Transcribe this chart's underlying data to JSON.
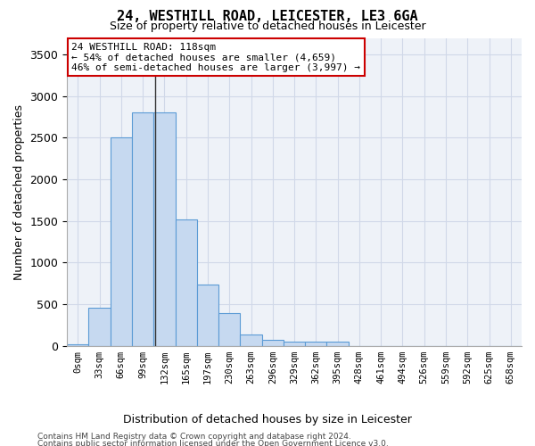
{
  "title1": "24, WESTHILL ROAD, LEICESTER, LE3 6GA",
  "title2": "Size of property relative to detached houses in Leicester",
  "xlabel": "Distribution of detached houses by size in Leicester",
  "ylabel": "Number of detached properties",
  "bar_values": [
    20,
    460,
    2500,
    2810,
    2810,
    1520,
    740,
    390,
    140,
    70,
    50,
    50,
    50,
    0,
    0,
    0,
    0,
    0,
    0,
    0,
    0
  ],
  "bar_labels": [
    "0sqm",
    "33sqm",
    "66sqm",
    "99sqm",
    "132sqm",
    "165sqm",
    "197sqm",
    "230sqm",
    "263sqm",
    "296sqm",
    "329sqm",
    "362sqm",
    "395sqm",
    "428sqm",
    "461sqm",
    "494sqm",
    "526sqm",
    "559sqm",
    "592sqm",
    "625sqm",
    "658sqm"
  ],
  "bar_color": "#c6d9f0",
  "bar_edge_color": "#5b9bd5",
  "grid_color": "#d0d8e8",
  "bg_color": "#eef2f8",
  "annotation_text": "24 WESTHILL ROAD: 118sqm\n← 54% of detached houses are smaller (4,659)\n46% of semi-detached houses are larger (3,997) →",
  "annotation_box_color": "#ffffff",
  "annotation_border_color": "#cc0000",
  "property_line_x": 3.576,
  "ylim": [
    0,
    3700
  ],
  "yticks": [
    0,
    500,
    1000,
    1500,
    2000,
    2500,
    3000,
    3500
  ],
  "footer1": "Contains HM Land Registry data © Crown copyright and database right 2024.",
  "footer2": "Contains public sector information licensed under the Open Government Licence v3.0."
}
